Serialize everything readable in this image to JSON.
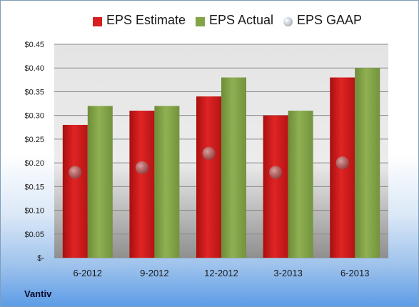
{
  "chart_data": {
    "type": "bar",
    "categories": [
      "6-2012",
      "9-2012",
      "12-2012",
      "3-2013",
      "6-2013"
    ],
    "series": [
      {
        "name": "EPS Estimate",
        "values": [
          0.28,
          0.31,
          0.34,
          0.3,
          0.38
        ],
        "color": "#d42020",
        "kind": "bar"
      },
      {
        "name": "EPS Actual",
        "values": [
          0.32,
          0.32,
          0.38,
          0.31,
          0.4
        ],
        "color": "#82a448",
        "kind": "bar"
      },
      {
        "name": "EPS GAAP",
        "values": [
          0.18,
          0.19,
          0.22,
          0.18,
          0.2
        ],
        "color": "#b8c2cc",
        "kind": "marker"
      }
    ],
    "ylim": [
      0,
      0.45
    ],
    "yticks": [
      0,
      0.05,
      0.1,
      0.15,
      0.2,
      0.25,
      0.3,
      0.35,
      0.4,
      0.45
    ],
    "ytick_labels": [
      "$-",
      "$0.05",
      "$0.10",
      "$0.15",
      "$0.20",
      "$0.25",
      "$0.30",
      "$0.35",
      "$0.40",
      "$0.45"
    ],
    "grid": true,
    "legend_position": "top"
  },
  "footer": {
    "company": "Vantiv"
  }
}
